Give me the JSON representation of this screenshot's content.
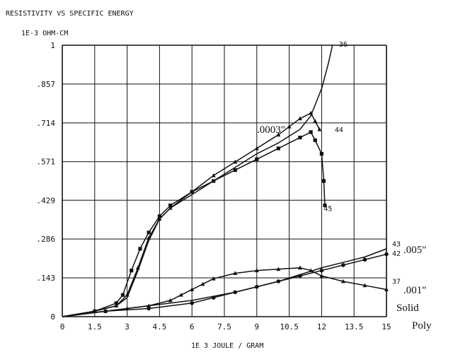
{
  "chart_data": {
    "type": "line",
    "title": "RESISTIVITY VS SPECIFIC ENERGY",
    "ylabel": "1E-3 OHM-CM",
    "xlabel": "1E 3 JOULE / GRAM",
    "xlim": [
      0,
      15
    ],
    "ylim": [
      0,
      1
    ],
    "grid": true,
    "x_ticks": [
      "0",
      "1.5",
      "3",
      "4.5",
      "6",
      "7.5",
      "9",
      "10.5",
      "12",
      "13.5",
      "15"
    ],
    "y_ticks": [
      "0",
      ".143",
      ".286",
      ".429",
      ".571",
      ".714",
      ".857",
      "1"
    ],
    "annotations": [
      ".0003\"",
      ".005\"",
      ".001\"",
      "Solid",
      "Poly"
    ],
    "series": [
      {
        "name": "36",
        "marker": "none",
        "x": [
          0,
          1.5,
          2.5,
          3,
          3.5,
          4,
          4.5,
          5,
          6,
          7,
          8,
          9,
          10,
          11,
          11.5,
          12,
          12.3,
          12.5
        ],
        "y": [
          0,
          0.02,
          0.04,
          0.07,
          0.17,
          0.28,
          0.36,
          0.4,
          0.45,
          0.5,
          0.55,
          0.6,
          0.64,
          0.69,
          0.74,
          0.84,
          0.93,
          1.0
        ]
      },
      {
        "name": "44",
        "marker": "triangle",
        "x": [
          0,
          1.5,
          2.5,
          3,
          3.5,
          4,
          4.5,
          5,
          6,
          7,
          8,
          9,
          10,
          10.5,
          11,
          11.5,
          11.7,
          11.9
        ],
        "y": [
          0,
          0.02,
          0.04,
          0.08,
          0.18,
          0.29,
          0.36,
          0.4,
          0.46,
          0.52,
          0.57,
          0.62,
          0.67,
          0.7,
          0.73,
          0.75,
          0.72,
          0.69
        ]
      },
      {
        "name": "45",
        "marker": "square",
        "x": [
          0,
          1.5,
          2.5,
          2.8,
          3.2,
          3.6,
          4,
          4.5,
          5,
          6,
          7,
          8,
          9,
          10,
          11,
          11.5,
          11.7,
          12,
          12.1,
          12.15
        ],
        "y": [
          0,
          0.02,
          0.05,
          0.08,
          0.17,
          0.25,
          0.31,
          0.37,
          0.41,
          0.46,
          0.5,
          0.54,
          0.58,
          0.62,
          0.66,
          0.68,
          0.65,
          0.6,
          0.5,
          0.41
        ]
      },
      {
        "name": "43",
        "marker": "none",
        "x": [
          0,
          2,
          4,
          6,
          8,
          10,
          12,
          13,
          14,
          15
        ],
        "y": [
          0,
          0.02,
          0.04,
          0.06,
          0.09,
          0.13,
          0.18,
          0.2,
          0.22,
          0.25
        ]
      },
      {
        "name": "42",
        "marker": "circle",
        "x": [
          0,
          2,
          4,
          6,
          7,
          8,
          9,
          10,
          11,
          12,
          13,
          14,
          15
        ],
        "y": [
          0,
          0.02,
          0.03,
          0.05,
          0.07,
          0.09,
          0.11,
          0.13,
          0.15,
          0.17,
          0.19,
          0.21,
          0.23
        ]
      },
      {
        "name": "37",
        "marker": "triangle",
        "x": [
          0,
          2,
          3,
          4,
          5,
          5.5,
          6,
          6.5,
          7,
          8,
          9,
          10,
          11,
          11.5,
          12,
          13,
          14,
          15
        ],
        "y": [
          0,
          0.02,
          0.03,
          0.04,
          0.06,
          0.08,
          0.1,
          0.12,
          0.14,
          0.16,
          0.17,
          0.175,
          0.18,
          0.17,
          0.15,
          0.13,
          0.115,
          0.1
        ]
      }
    ]
  }
}
